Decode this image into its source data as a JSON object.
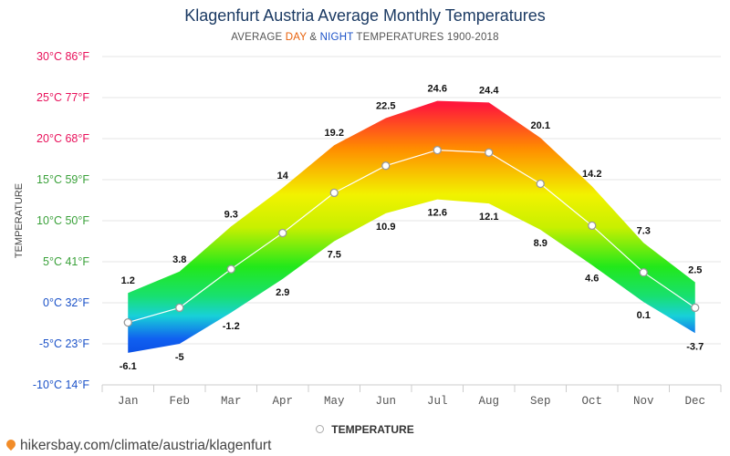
{
  "header": {
    "title": "Klagenfurt Austria Average Monthly Temperatures",
    "subtitle_prefix": "AVERAGE ",
    "subtitle_day": "DAY",
    "subtitle_amp": " & ",
    "subtitle_night": "NIGHT",
    "subtitle_suffix": " TEMPERATURES 1900-2018"
  },
  "legend": {
    "label": "TEMPERATURE"
  },
  "footer": {
    "url": "hikersbay.com/climate/austria/klagenfurt"
  },
  "chart_data": {
    "type": "area",
    "title": "Klagenfurt Austria Average Monthly Temperatures",
    "subtitle": "AVERAGE DAY & NIGHT TEMPERATURES 1900-2018",
    "ylabel": "TEMPERATURE",
    "categories": [
      "Jan",
      "Feb",
      "Mar",
      "Apr",
      "May",
      "Jun",
      "Jul",
      "Aug",
      "Sep",
      "Oct",
      "Nov",
      "Dec"
    ],
    "ylim": [
      -10,
      30
    ],
    "ytick_values": [
      30,
      25,
      20,
      15,
      10,
      5,
      0,
      -5,
      -10
    ],
    "ytick_labels": [
      "30°C 86°F",
      "25°C 77°F",
      "20°C 68°F",
      "15°C 59°F",
      "10°C 50°F",
      "5°C 41°F",
      "0°C 32°F",
      "-5°C 23°F",
      "-10°C 14°F"
    ],
    "ytick_colors": [
      "#e8105a",
      "#e8105a",
      "#e8105a",
      "#3aa13a",
      "#3aa13a",
      "#3aa13a",
      "#1b52c8",
      "#1b52c8",
      "#1b52c8"
    ],
    "series": [
      {
        "name": "DAY",
        "values": [
          1.2,
          3.8,
          9.3,
          14,
          19.2,
          22.5,
          24.6,
          24.4,
          20.1,
          14.2,
          7.3,
          2.5
        ]
      },
      {
        "name": "NIGHT",
        "values": [
          -6.1,
          -5,
          -1.2,
          2.9,
          7.5,
          10.9,
          12.6,
          12.1,
          8.9,
          4.6,
          0.1,
          -3.7
        ]
      },
      {
        "name": "TEMPERATURE",
        "values": [
          -2.4,
          -0.6,
          4.1,
          8.5,
          13.4,
          16.7,
          18.6,
          18.3,
          14.5,
          9.4,
          3.7,
          -0.6
        ]
      }
    ],
    "grid": true,
    "legend_position": "bottom-center"
  }
}
